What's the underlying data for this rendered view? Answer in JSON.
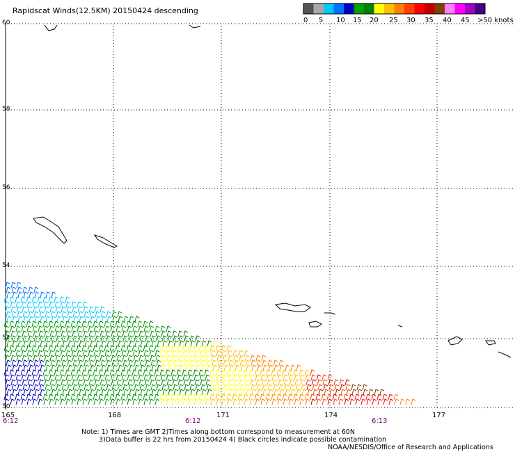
{
  "title": "Rapidscat Winds(12.5KM) 20150424 descending",
  "legend": {
    "colors": [
      "#555555",
      "#a8a8a8",
      "#00c8ff",
      "#0070ff",
      "#0000c0",
      "#00a000",
      "#008000",
      "#ffff00",
      "#ffc000",
      "#ff8000",
      "#ff4000",
      "#ff0000",
      "#c00000",
      "#804000",
      "#ff80ff",
      "#ff00ff",
      "#a000c0",
      "#400080"
    ],
    "labels": [
      "0",
      "5",
      "10",
      "15",
      "20",
      "25",
      "30",
      "35",
      "40",
      "45",
      ">50 knots"
    ]
  },
  "axes": {
    "lat_labels": [
      "60",
      "58",
      "56",
      "54",
      "52",
      "50"
    ],
    "lon_labels": [
      "165",
      "168",
      "171",
      "174",
      "177"
    ]
  },
  "times": [
    "6:12",
    "6:12",
    "6:13"
  ],
  "notes": {
    "line1": "Note: 1) Times are GMT 2)Times along bottom correspond to measurement at 60N",
    "line2": "3)Data buffer is 22 hrs from 20150424 4) Black circles indicate possible contamination",
    "line3": "NOAA/NESDIS/Office of Research and Applications"
  }
}
